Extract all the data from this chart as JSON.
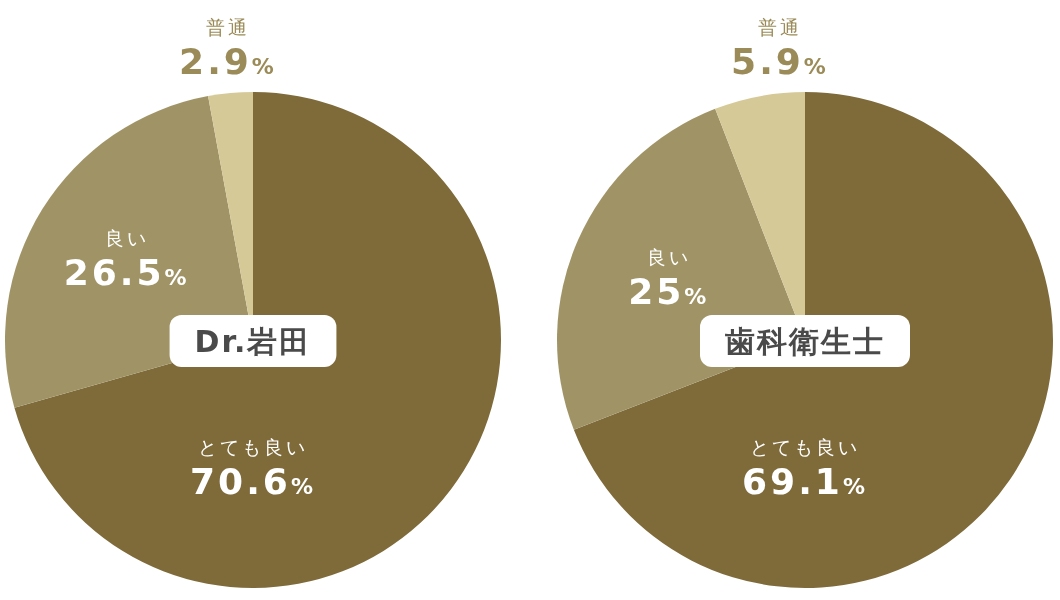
{
  "chart_data": [
    {
      "type": "pie",
      "title": "Dr.岩田",
      "categories": [
        "とても良い",
        "良い",
        "普通"
      ],
      "values": [
        70.6,
        26.5,
        2.9
      ],
      "value_labels": [
        "70.6%",
        "26.5%",
        "2.9%"
      ],
      "colors": [
        "#7f6a3a",
        "#a09466",
        "#d6c998"
      ]
    },
    {
      "type": "pie",
      "title": "歯科衛生士",
      "categories": [
        "とても良い",
        "良い",
        "普通"
      ],
      "values": [
        69.1,
        25,
        5.9
      ],
      "value_labels": [
        "69.1%",
        "25%",
        "5.9%"
      ],
      "colors": [
        "#7f6a3a",
        "#a09466",
        "#d6c998"
      ]
    }
  ]
}
